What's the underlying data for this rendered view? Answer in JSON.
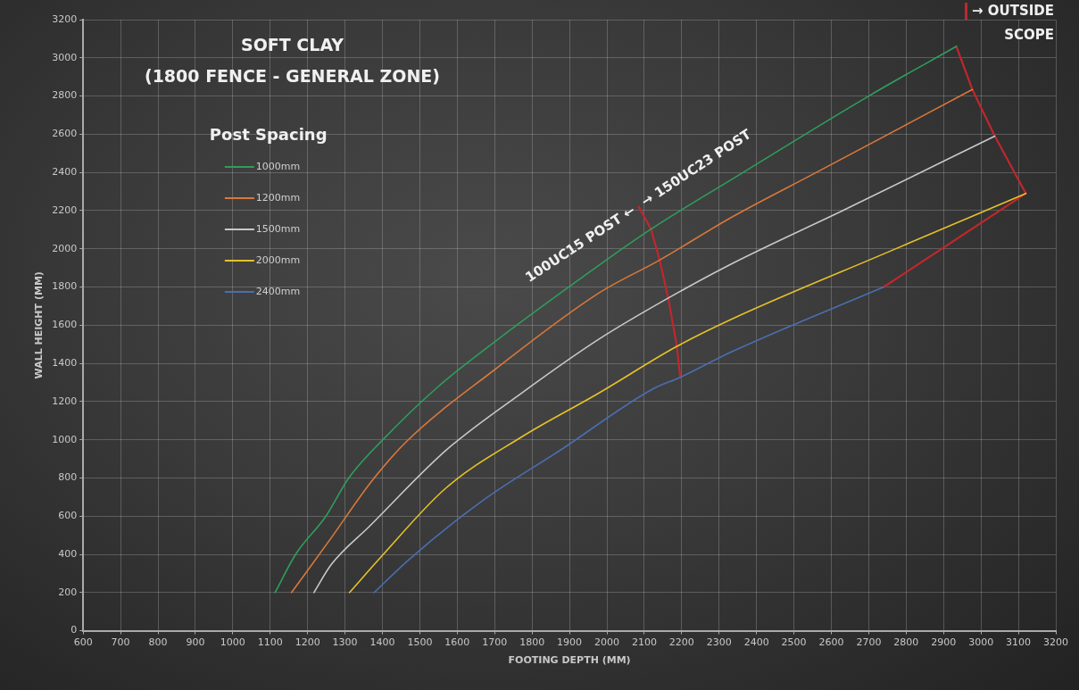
{
  "chart_data": {
    "type": "line",
    "title": "SOFT CLAY",
    "subtitle": "(1800 FENCE - GENERAL ZONE)",
    "xlabel": "FOOTING DEPTH (MM)",
    "ylabel": "WALL HEIGHT (MM)",
    "legend_title": "Post Spacing",
    "legend": "top left",
    "grid": true,
    "marker": "none",
    "line_style": "solid",
    "xlim": [
      600,
      3200
    ],
    "xticks": [
      600,
      700,
      800,
      900,
      1000,
      1100,
      1200,
      1300,
      1400,
      1500,
      1600,
      1700,
      1800,
      1900,
      2000,
      2100,
      2200,
      2300,
      2400,
      2500,
      2600,
      2700,
      2800,
      2900,
      3000,
      3100,
      3200
    ],
    "ylim": [
      0,
      3200
    ],
    "yticks": [
      0,
      200,
      400,
      600,
      800,
      1000,
      1200,
      1400,
      1600,
      1800,
      2000,
      2200,
      2400,
      2600,
      2800,
      3000,
      3200
    ],
    "annotations": [
      {
        "text": "100UC15 POST ←",
        "x": 2085,
        "y": 2221
      },
      {
        "text": "→ 150UC23 POST",
        "x": 2085,
        "y": 2221
      },
      "→ OUTSIDE SCOPE"
    ],
    "series": [
      {
        "name": "1000mm",
        "color": "#2e9e5b",
        "x": [
          1113,
          1168,
          1249,
          1310,
          1401,
          1550,
          1702,
          1979,
          2118,
          2335,
          2700,
          2934
        ],
        "values": [
          200,
          400,
          600,
          800,
          1000,
          1280,
          1516,
          1914,
          2103,
          2365,
          2800,
          3060
        ]
      },
      {
        "name": "1200mm",
        "color": "#d9783a",
        "x": [
          1157,
          1263,
          1370,
          1467,
          1702,
          1979,
          2141,
          2335,
          2560,
          2977
        ],
        "values": [
          200,
          486,
          780,
          996,
          1370,
          1769,
          1941,
          2167,
          2400,
          2834
        ]
      },
      {
        "name": "1500mm",
        "color": "#c8c8c8",
        "x": [
          1217,
          1263,
          1365,
          1570,
          1773,
          1978,
          2164,
          2335,
          2630,
          3037
        ],
        "values": [
          200,
          346,
          546,
          945,
          1246,
          1526,
          1742,
          1923,
          2200,
          2590
        ]
      },
      {
        "name": "2000mm",
        "color": "#e6c229",
        "x": [
          1312,
          1396,
          1569,
          1773,
          1979,
          2187,
          2335,
          2760,
          3120
        ],
        "values": [
          200,
          386,
          746,
          1016,
          1245,
          1489,
          1633,
          1990,
          2290
        ]
      },
      {
        "name": "2400mm",
        "color": "#4a6eb0",
        "x": [
          1378,
          1467,
          1671,
          1876,
          2123,
          2196,
          2335,
          2740
        ],
        "values": [
          200,
          366,
          686,
          946,
          1266,
          1327,
          1462,
          1800
        ]
      },
      {
        "color": "#c0272d",
        "x": [
          2085,
          2118,
          2141,
          2164,
          2187,
          2196
        ],
        "values": [
          2221,
          2103,
          1941,
          1742,
          1489,
          1327
        ]
      },
      {
        "color": "#c0272d",
        "x": [
          2934,
          2977,
          3037,
          3120,
          2740
        ],
        "values": [
          3060,
          2834,
          2590,
          2290,
          1800
        ]
      }
    ]
  }
}
